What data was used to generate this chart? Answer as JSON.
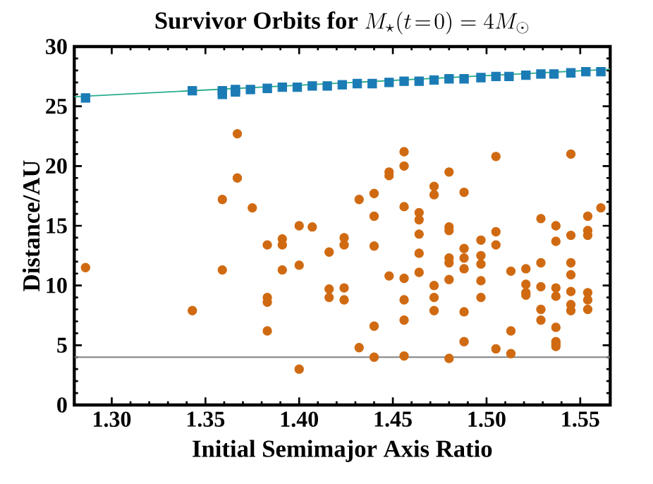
{
  "chart_data": {
    "type": "scatter",
    "title": "\\textbf{Survivor Orbits for }M_{\\star}(t\\!=\\!0)=4M_{\\odot}",
    "xlabel": "Initial Semimajor Axis Ratio",
    "ylabel": "Distance/AU",
    "xlim": [
      1.28,
      1.566
    ],
    "ylim": [
      0,
      30
    ],
    "xticks": [
      {
        "value": 1.3,
        "label": "1.30"
      },
      {
        "value": 1.35,
        "label": "1.35"
      },
      {
        "value": 1.4,
        "label": "1.40"
      },
      {
        "value": 1.45,
        "label": "1.45"
      },
      {
        "value": 1.5,
        "label": "1.50"
      },
      {
        "value": 1.55,
        "label": "1.55"
      }
    ],
    "yticks": [
      0,
      5,
      10,
      15,
      20,
      25,
      30
    ],
    "grid": false,
    "ref_lines": [
      {
        "axis": "y",
        "value": 4,
        "color": "#808080"
      }
    ],
    "series": [
      {
        "type": "line",
        "color": "#2aae8c",
        "marker": "none",
        "x": [
          1.28,
          1.566
        ],
        "values": [
          25.8,
          28.1
        ]
      },
      {
        "type": "scatter",
        "color": "#1a7bb5",
        "marker": "square",
        "x": [
          1.286,
          1.343,
          1.359,
          1.359,
          1.366,
          1.366,
          1.374,
          1.383,
          1.391,
          1.399,
          1.407,
          1.415,
          1.423,
          1.431,
          1.439,
          1.448,
          1.456,
          1.464,
          1.472,
          1.48,
          1.488,
          1.497,
          1.505,
          1.512,
          1.521,
          1.529,
          1.536,
          1.545,
          1.553,
          1.561
        ],
        "values": [
          25.7,
          26.3,
          26.3,
          26.0,
          26.4,
          26.2,
          26.4,
          26.5,
          26.6,
          26.6,
          26.7,
          26.7,
          26.8,
          26.9,
          26.9,
          27.0,
          27.1,
          27.1,
          27.2,
          27.3,
          27.3,
          27.4,
          27.5,
          27.5,
          27.6,
          27.7,
          27.7,
          27.8,
          27.9,
          27.9
        ]
      },
      {
        "color": "#d06a12",
        "marker": "circle",
        "x": [
          1.286,
          1.343,
          1.367,
          1.367,
          1.359,
          1.359,
          1.375,
          1.383,
          1.383,
          1.383,
          1.383,
          1.391,
          1.391,
          1.391,
          1.4,
          1.4,
          1.4,
          1.407,
          1.416,
          1.416,
          1.416,
          1.424,
          1.424,
          1.424,
          1.424,
          1.432,
          1.432,
          1.44,
          1.44,
          1.44,
          1.44,
          1.44,
          1.448,
          1.448,
          1.448,
          1.456,
          1.456,
          1.456,
          1.456,
          1.456,
          1.456,
          1.456,
          1.464,
          1.464,
          1.464,
          1.464,
          1.464,
          1.472,
          1.472,
          1.472,
          1.472,
          1.472,
          1.48,
          1.48,
          1.48,
          1.48,
          1.48,
          1.48,
          1.48,
          1.488,
          1.488,
          1.488,
          1.488,
          1.488,
          1.488,
          1.497,
          1.497,
          1.497,
          1.497,
          1.497,
          1.505,
          1.505,
          1.505,
          1.505,
          1.513,
          1.513,
          1.513,
          1.521,
          1.521,
          1.521,
          1.521,
          1.529,
          1.529,
          1.529,
          1.529,
          1.529,
          1.537,
          1.537,
          1.537,
          1.537,
          1.537,
          1.537,
          1.537,
          1.537,
          1.545,
          1.545,
          1.545,
          1.545,
          1.545,
          1.545,
          1.545,
          1.554,
          1.554,
          1.554,
          1.554,
          1.554,
          1.554,
          1.561
        ],
        "values": [
          11.5,
          7.9,
          22.7,
          19.0,
          17.2,
          11.3,
          16.5,
          13.4,
          9.0,
          8.6,
          6.2,
          13.9,
          13.4,
          11.3,
          15.0,
          11.7,
          3.0,
          14.9,
          12.8,
          9.7,
          9.0,
          14.0,
          13.4,
          9.8,
          8.8,
          17.2,
          4.8,
          17.7,
          15.8,
          13.3,
          6.6,
          4.0,
          19.5,
          19.2,
          10.8,
          21.2,
          20.0,
          16.6,
          10.6,
          8.8,
          7.1,
          4.1,
          16.1,
          15.5,
          14.3,
          12.7,
          11.1,
          18.3,
          17.6,
          10.0,
          9.0,
          7.9,
          19.5,
          14.9,
          14.6,
          12.3,
          11.9,
          10.5,
          3.9,
          17.8,
          13.1,
          12.3,
          11.4,
          7.8,
          5.3,
          13.8,
          12.5,
          11.8,
          10.4,
          9.0,
          20.8,
          14.5,
          13.4,
          4.7,
          11.2,
          6.2,
          4.3,
          11.4,
          10.1,
          9.4,
          9.2,
          15.6,
          11.9,
          9.9,
          8.0,
          7.1,
          15.0,
          13.7,
          9.8,
          9.1,
          6.5,
          5.3,
          5.1,
          4.9,
          21.0,
          14.2,
          11.9,
          10.9,
          9.5,
          8.4,
          7.9,
          15.8,
          14.6,
          14.2,
          9.4,
          8.8,
          8.0,
          16.5
        ]
      }
    ]
  }
}
